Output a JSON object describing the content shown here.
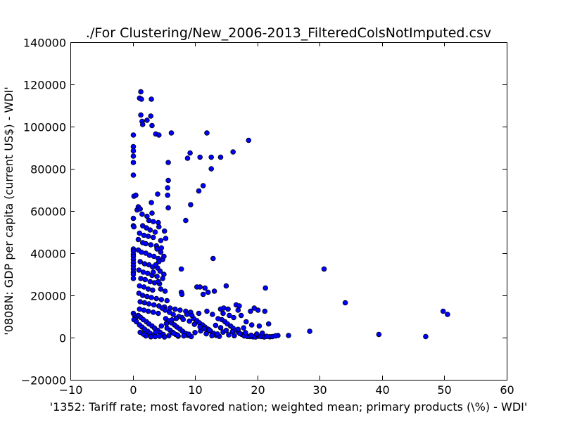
{
  "chart_data": {
    "type": "scatter",
    "title": "./For Clustering/New_2006-2013_FilteredColsNotImputed.csv",
    "xlabel": "'1352: Tariff rate; most favored nation; weighted mean; primary products  (\\%) - WDI'",
    "ylabel": "'0808N: GDP per capita  (current US$) - WDI'",
    "xlim": [
      -10,
      60
    ],
    "ylim": [
      -20000,
      140000
    ],
    "x_ticks": [
      -10,
      0,
      10,
      20,
      30,
      40,
      50,
      60
    ],
    "y_ticks": [
      -20000,
      0,
      20000,
      40000,
      60000,
      80000,
      100000,
      120000,
      140000
    ],
    "x_tick_labels": [
      "−10",
      "0",
      "10",
      "20",
      "30",
      "40",
      "50",
      "60"
    ],
    "y_tick_labels": [
      "−20000",
      "0",
      "20000",
      "40000",
      "60000",
      "80000",
      "100000",
      "120000",
      "140000"
    ],
    "grid": false,
    "marker_color": "#0000ff",
    "marker_edge": "#000000",
    "points": [
      [
        0.1,
        96000
      ],
      [
        0.1,
        90500
      ],
      [
        0.1,
        88500
      ],
      [
        0.1,
        86000
      ],
      [
        0.1,
        83000
      ],
      [
        0.1,
        77000
      ],
      [
        0.2,
        67000
      ],
      [
        0.5,
        67500
      ],
      [
        1.3,
        116500
      ],
      [
        1.1,
        113500
      ],
      [
        1.4,
        113000
      ],
      [
        3.0,
        113000
      ],
      [
        1.3,
        105500
      ],
      [
        2.9,
        105000
      ],
      [
        1.5,
        102500
      ],
      [
        2.3,
        103000
      ],
      [
        1.6,
        101000
      ],
      [
        3.1,
        100500
      ],
      [
        3.7,
        96500
      ],
      [
        4.2,
        96000
      ],
      [
        6.2,
        97000
      ],
      [
        11.9,
        97000
      ],
      [
        18.6,
        93500
      ],
      [
        9.2,
        87500
      ],
      [
        10.8,
        85500
      ],
      [
        8.8,
        85000
      ],
      [
        14.1,
        85500
      ],
      [
        12.6,
        85500
      ],
      [
        16.1,
        88000
      ],
      [
        5.7,
        83000
      ],
      [
        12.6,
        80000
      ],
      [
        5.7,
        74500
      ],
      [
        5.6,
        71000
      ],
      [
        5.6,
        67500
      ],
      [
        11.3,
        72000
      ],
      [
        10.6,
        69500
      ],
      [
        4.0,
        68000
      ],
      [
        3.0,
        64000
      ],
      [
        9.3,
        63000
      ],
      [
        5.7,
        61500
      ],
      [
        8.5,
        55500
      ],
      [
        7.8,
        32500
      ],
      [
        12.9,
        37500
      ],
      [
        30.7,
        32500
      ],
      [
        34.1,
        16500
      ],
      [
        21.3,
        23500
      ],
      [
        15.0,
        24500
      ],
      [
        28.4,
        3000
      ],
      [
        39.5,
        1500
      ],
      [
        47.0,
        500
      ],
      [
        49.8,
        12500
      ],
      [
        50.5,
        11000
      ],
      [
        25.0,
        1000
      ],
      [
        23.3,
        1000
      ],
      [
        0.1,
        56500
      ],
      [
        0.1,
        53000
      ],
      [
        0.2,
        52500
      ],
      [
        0.7,
        60500
      ],
      [
        0.9,
        62000
      ],
      [
        1.2,
        61000
      ],
      [
        1.5,
        58500
      ],
      [
        2.3,
        57500
      ],
      [
        3.1,
        59000
      ],
      [
        2.6,
        55500
      ],
      [
        3.3,
        55000
      ],
      [
        4.1,
        54500
      ],
      [
        1.6,
        53000
      ],
      [
        2.2,
        52000
      ],
      [
        2.8,
        51000
      ],
      [
        3.6,
        50000
      ],
      [
        4.2,
        52500
      ],
      [
        5.1,
        50500
      ],
      [
        1.1,
        49500
      ],
      [
        1.8,
        48500
      ],
      [
        2.5,
        48000
      ],
      [
        3.3,
        47500
      ],
      [
        4.5,
        46000
      ],
      [
        5.3,
        47000
      ],
      [
        0.9,
        46500
      ],
      [
        1.6,
        45000
      ],
      [
        2.1,
        44500
      ],
      [
        2.9,
        44000
      ],
      [
        3.8,
        43500
      ],
      [
        4.6,
        42500
      ],
      [
        0.1,
        42000
      ],
      [
        0.1,
        41000
      ],
      [
        0.1,
        39500
      ],
      [
        0.1,
        38500
      ],
      [
        0.1,
        37000
      ],
      [
        0.1,
        35500
      ],
      [
        0.1,
        34000
      ],
      [
        0.1,
        32500
      ],
      [
        0.1,
        31000
      ],
      [
        0.1,
        30000
      ],
      [
        0.1,
        28000
      ],
      [
        0.9,
        41500
      ],
      [
        1.4,
        40500
      ],
      [
        2.1,
        40000
      ],
      [
        2.7,
        39000
      ],
      [
        3.4,
        38500
      ],
      [
        4.1,
        37500
      ],
      [
        4.8,
        37000
      ],
      [
        1.2,
        36000
      ],
      [
        1.9,
        35000
      ],
      [
        2.6,
        34500
      ],
      [
        3.2,
        33500
      ],
      [
        4.0,
        33000
      ],
      [
        1.0,
        32000
      ],
      [
        1.7,
        31000
      ],
      [
        2.4,
        30500
      ],
      [
        3.1,
        29500
      ],
      [
        3.9,
        29000
      ],
      [
        1.3,
        28000
      ],
      [
        2.0,
        27500
      ],
      [
        2.8,
        26500
      ],
      [
        3.5,
        26000
      ],
      [
        4.3,
        25500
      ],
      [
        1.1,
        24500
      ],
      [
        1.8,
        24000
      ],
      [
        2.5,
        23000
      ],
      [
        3.2,
        22500
      ],
      [
        4.5,
        23000
      ],
      [
        5.2,
        22000
      ],
      [
        7.8,
        21500
      ],
      [
        7.9,
        20500
      ],
      [
        10.3,
        24000
      ],
      [
        10.8,
        24000
      ],
      [
        11.6,
        23500
      ],
      [
        12.1,
        21500
      ],
      [
        13.1,
        22000
      ],
      [
        11.3,
        20500
      ],
      [
        1.0,
        21000
      ],
      [
        1.6,
        20000
      ],
      [
        2.3,
        19500
      ],
      [
        3.0,
        19000
      ],
      [
        3.8,
        18500
      ],
      [
        4.6,
        18000
      ],
      [
        5.5,
        17500
      ],
      [
        1.2,
        17000
      ],
      [
        1.9,
        16500
      ],
      [
        2.6,
        16000
      ],
      [
        3.4,
        15500
      ],
      [
        4.2,
        15000
      ],
      [
        5.1,
        14500
      ],
      [
        6.0,
        14000
      ],
      [
        6.8,
        13500
      ],
      [
        7.6,
        13000
      ],
      [
        8.5,
        12500
      ],
      [
        9.3,
        12000
      ],
      [
        1.1,
        13500
      ],
      [
        1.8,
        13000
      ],
      [
        2.5,
        12500
      ],
      [
        3.3,
        12000
      ],
      [
        4.1,
        11500
      ],
      [
        14.1,
        13500
      ],
      [
        14.6,
        14000
      ],
      [
        15.3,
        13500
      ],
      [
        16.6,
        15500
      ],
      [
        17.1,
        15000
      ],
      [
        19.5,
        14000
      ],
      [
        20.1,
        13000
      ],
      [
        18.9,
        12500
      ],
      [
        21.2,
        12500
      ],
      [
        16.9,
        13000
      ],
      [
        14.5,
        11500
      ],
      [
        15.5,
        10500
      ],
      [
        0.1,
        11500
      ],
      [
        0.3,
        10500
      ],
      [
        0.5,
        9500
      ],
      [
        0.2,
        8500
      ],
      [
        0.6,
        7500
      ],
      [
        0.9,
        10500
      ],
      [
        1.3,
        9500
      ],
      [
        1.7,
        8500
      ],
      [
        2.2,
        7500
      ],
      [
        2.6,
        6500
      ],
      [
        3.1,
        5500
      ],
      [
        3.5,
        4500
      ],
      [
        4.0,
        3500
      ],
      [
        4.4,
        2500
      ],
      [
        4.9,
        1500
      ],
      [
        1.1,
        6000
      ],
      [
        1.5,
        5000
      ],
      [
        1.9,
        4000
      ],
      [
        2.4,
        3000
      ],
      [
        2.8,
        2000
      ],
      [
        3.3,
        1000
      ],
      [
        5.3,
        9000
      ],
      [
        5.8,
        8000
      ],
      [
        6.2,
        7000
      ],
      [
        6.7,
        6000
      ],
      [
        7.1,
        5000
      ],
      [
        7.6,
        4000
      ],
      [
        8.0,
        3000
      ],
      [
        8.5,
        2000
      ],
      [
        8.9,
        1000
      ],
      [
        9.4,
        500
      ],
      [
        5.5,
        4500
      ],
      [
        6.0,
        3500
      ],
      [
        6.4,
        2500
      ],
      [
        6.9,
        1500
      ],
      [
        7.3,
        700
      ],
      [
        9.8,
        9000
      ],
      [
        10.3,
        8000
      ],
      [
        10.7,
        7000
      ],
      [
        11.2,
        6000
      ],
      [
        11.6,
        5000
      ],
      [
        12.1,
        4000
      ],
      [
        12.5,
        3000
      ],
      [
        13.0,
        2000
      ],
      [
        13.4,
        1000
      ],
      [
        13.9,
        600
      ],
      [
        14.3,
        8500
      ],
      [
        14.8,
        7500
      ],
      [
        15.2,
        6500
      ],
      [
        15.7,
        5500
      ],
      [
        16.1,
        4500
      ],
      [
        16.6,
        3500
      ],
      [
        17.0,
        2500
      ],
      [
        17.5,
        1500
      ],
      [
        17.9,
        800
      ],
      [
        18.4,
        600
      ],
      [
        18.8,
        500
      ],
      [
        19.3,
        400
      ],
      [
        19.7,
        300
      ],
      [
        20.2,
        700
      ],
      [
        20.6,
        500
      ],
      [
        21.1,
        300
      ],
      [
        21.5,
        600
      ],
      [
        22.0,
        400
      ],
      [
        22.4,
        500
      ],
      [
        22.9,
        800
      ],
      [
        19.1,
        6000
      ],
      [
        20.3,
        5500
      ],
      [
        21.8,
        6500
      ],
      [
        18.2,
        7500
      ],
      [
        17.4,
        10500
      ],
      [
        16.2,
        9500
      ],
      [
        13.7,
        9000
      ],
      [
        12.8,
        11000
      ],
      [
        11.9,
        12500
      ],
      [
        10.6,
        11500
      ],
      [
        9.5,
        10500
      ],
      [
        8.7,
        11000
      ],
      [
        7.9,
        9500
      ],
      [
        7.4,
        10000
      ],
      [
        6.5,
        11000
      ],
      [
        5.9,
        12000
      ],
      [
        5.2,
        13000
      ],
      [
        4.7,
        14000
      ],
      [
        6.6,
        2000
      ],
      [
        7.2,
        1200
      ],
      [
        8.2,
        800
      ],
      [
        9.0,
        1600
      ],
      [
        10.0,
        2400
      ],
      [
        10.9,
        3200
      ],
      [
        11.8,
        1800
      ],
      [
        12.7,
        900
      ],
      [
        13.6,
        1700
      ],
      [
        14.5,
        2600
      ],
      [
        15.4,
        1300
      ],
      [
        16.3,
        900
      ],
      [
        17.2,
        1900
      ],
      [
        18.1,
        2300
      ],
      [
        19.0,
        1100
      ],
      [
        19.9,
        1700
      ],
      [
        20.8,
        2100
      ],
      [
        3.6,
        500
      ],
      [
        4.3,
        700
      ],
      [
        5.1,
        300
      ],
      [
        5.8,
        900
      ],
      [
        2.1,
        800
      ],
      [
        2.9,
        400
      ],
      [
        1.7,
        1700
      ],
      [
        1.2,
        2500
      ],
      [
        3.7,
        2600
      ],
      [
        4.6,
        5500
      ],
      [
        5.4,
        6600
      ],
      [
        6.3,
        8400
      ],
      [
        7.0,
        9100
      ],
      [
        8.1,
        8600
      ],
      [
        9.1,
        7800
      ],
      [
        9.9,
        6300
      ],
      [
        10.8,
        5100
      ],
      [
        11.5,
        4200
      ],
      [
        12.3,
        3600
      ],
      [
        13.3,
        5800
      ],
      [
        14.1,
        4700
      ],
      [
        15.0,
        3400
      ],
      [
        16.0,
        2800
      ],
      [
        16.9,
        3900
      ],
      [
        17.8,
        4600
      ],
      [
        3.9,
        42000
      ],
      [
        4.5,
        40500
      ],
      [
        5.0,
        38500
      ],
      [
        4.2,
        36000
      ],
      [
        3.7,
        34500
      ],
      [
        4.4,
        31500
      ],
      [
        5.0,
        30000
      ],
      [
        4.8,
        28000
      ],
      [
        4.1,
        26500
      ],
      [
        3.3,
        31000
      ]
    ]
  }
}
